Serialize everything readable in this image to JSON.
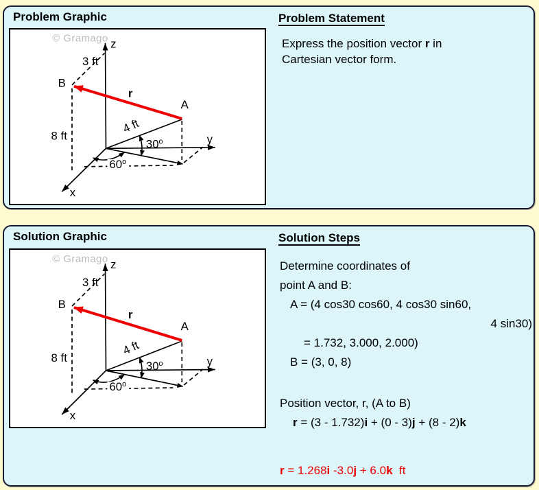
{
  "colors": {
    "page_bg": "#FDFACF",
    "panel_bg": "#DBF5F9",
    "panel_border": "#1A1A33",
    "accent_red": "#EE0000",
    "watermark_gray": "#BCBCBC"
  },
  "problem_panel": {
    "graphic_title": "Problem Graphic",
    "statement_title": "Problem Statement",
    "statement_lines": [
      {
        "segments": [
          {
            "t": "Express the position vector "
          },
          {
            "t": "r",
            "b": true
          },
          {
            "t": " in"
          }
        ]
      },
      {
        "segments": [
          {
            "t": "Cartesian vector form."
          }
        ]
      }
    ]
  },
  "solution_panel": {
    "graphic_title": "Solution Graphic",
    "steps_title": "Solution Steps",
    "lines": [
      {
        "segments": [
          {
            "t": "Determine coordinates of"
          }
        ]
      },
      {
        "segments": [
          {
            "t": "point A and B:"
          }
        ]
      },
      {
        "segments": [
          {
            "t": "A = (4 cos30 cos60, 4 cos30 sin60,"
          }
        ]
      },
      {
        "segments": [
          {
            "t": "4 sin30)"
          }
        ]
      },
      {
        "segments": [
          {
            "t": "= 1.732, 3.000, 2.000)"
          }
        ]
      },
      {
        "segments": [
          {
            "t": "B = (3, 0, 8)"
          }
        ]
      },
      {
        "segments": [
          {
            "t": "Position vector, r, (A to B)"
          }
        ]
      },
      {
        "segments": [
          {
            "t": "r",
            "b": true
          },
          {
            "t": " = (3 - 1.732)"
          },
          {
            "t": "i",
            "b": true
          },
          {
            "t": " + (0 - 3)"
          },
          {
            "t": "j",
            "b": true
          },
          {
            "t": " + (8 - 2)"
          },
          {
            "t": "k",
            "b": true
          }
        ]
      },
      {
        "segments": [
          {
            "t": "r",
            "b": true
          },
          {
            "t": " = 1.268"
          },
          {
            "t": "i",
            "b": true
          },
          {
            "t": " -3.0"
          },
          {
            "t": "j",
            "b": true
          },
          {
            "t": " + 6.0"
          },
          {
            "t": "k",
            "b": true
          },
          {
            "t": "  ft"
          }
        ]
      }
    ]
  },
  "diagram": {
    "watermark": "© Gramago",
    "axis_z": "z",
    "axis_y": "y",
    "axis_x": "x",
    "point_a": "A",
    "point_b": "B",
    "vector_r": "r",
    "dim_3ft": "3 ft",
    "dim_8ft": "8 ft",
    "dim_4ft": "4 ft",
    "angle_30": "30",
    "angle_60": "60",
    "deg_sup": "o"
  }
}
